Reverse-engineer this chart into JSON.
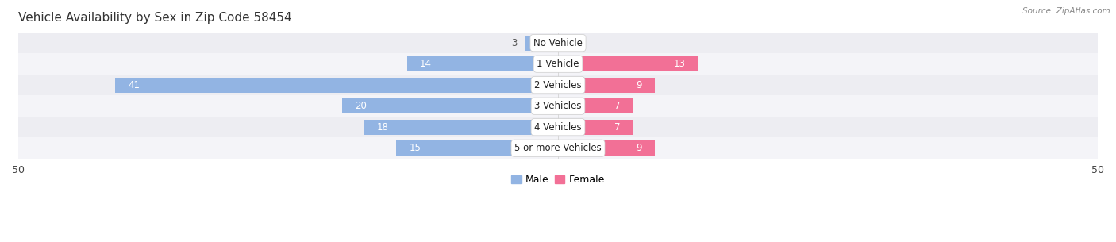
{
  "title": "Vehicle Availability by Sex in Zip Code 58454",
  "source": "Source: ZipAtlas.com",
  "categories": [
    "No Vehicle",
    "1 Vehicle",
    "2 Vehicles",
    "3 Vehicles",
    "4 Vehicles",
    "5 or more Vehicles"
  ],
  "male_values": [
    3,
    14,
    41,
    20,
    18,
    15
  ],
  "female_values": [
    0,
    13,
    9,
    7,
    7,
    9
  ],
  "male_color": "#92b4e3",
  "female_color": "#f27096",
  "row_bg_colors": [
    "#ededf2",
    "#f4f4f8"
  ],
  "xlim": 50,
  "bar_height": 0.72,
  "label_color_inside": "#ffffff",
  "label_color_outside": "#555555",
  "title_color": "#333333",
  "title_fontsize": 11,
  "source_fontsize": 7.5,
  "tick_fontsize": 9,
  "value_fontsize": 8.5,
  "category_fontsize": 8.5,
  "inside_threshold": 4
}
